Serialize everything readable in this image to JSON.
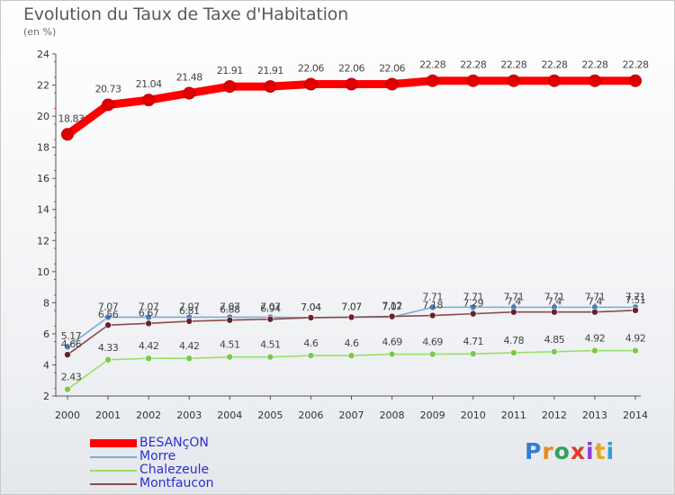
{
  "header": {
    "title": "Evolution du Taux de Taxe d'Habitation",
    "subtitle": "(en %)"
  },
  "logo": {
    "letters": [
      "P",
      "r",
      "o",
      "x",
      "i",
      "t",
      "i"
    ],
    "colors": [
      "#2f7fd4",
      "#e88a1a",
      "#2fa35a",
      "#e23a2a",
      "#8a3fd0",
      "#e8a61a",
      "#2f9fd4"
    ]
  },
  "chart_data": {
    "type": "line",
    "title": "Evolution du Taux de Taxe d'Habitation",
    "ylabel": "(en %)",
    "xlabel": "",
    "ylim": [
      2,
      24
    ],
    "yticks": [
      2,
      4,
      6,
      8,
      10,
      12,
      14,
      16,
      18,
      20,
      22,
      24
    ],
    "categories": [
      "2000",
      "2001",
      "2002",
      "2003",
      "2004",
      "2005",
      "2006",
      "2007",
      "2008",
      "2009",
      "2010",
      "2011",
      "2012",
      "2013",
      "2014"
    ],
    "series": [
      {
        "name": "BESANçON",
        "color": "#ff0000",
        "marker_color": "#e00000",
        "values": [
          18.83,
          20.73,
          21.04,
          21.48,
          21.91,
          21.91,
          22.06,
          22.06,
          22.06,
          22.28,
          22.28,
          22.28,
          22.28,
          22.28,
          22.28
        ],
        "labels": [
          "18.83",
          "20.73",
          "21.04",
          "21.48",
          "21.91",
          "21.91",
          "22.06",
          "22.06",
          "22.06",
          "22.28",
          "22.28",
          "22.28",
          "22.28",
          "22.28",
          "22.28"
        ]
      },
      {
        "name": "Morre",
        "color": "#7aaad8",
        "marker_color": "#4a7fbf",
        "values": [
          5.17,
          7.07,
          7.07,
          7.07,
          7.07,
          7.07,
          7.04,
          7.07,
          7.07,
          7.71,
          7.71,
          7.71,
          7.71,
          7.71,
          7.71
        ],
        "labels": [
          "5.17",
          "7.07",
          "7.07",
          "7.07",
          "7.07",
          "7.07",
          "7.04",
          "7.07",
          "7.07",
          "7.71",
          "7.71",
          "7.71",
          "7.71",
          "7.71",
          "7.71"
        ]
      },
      {
        "name": "Chalezeule",
        "color": "#99e066",
        "marker_color": "#79c84a",
        "values": [
          2.43,
          4.33,
          4.42,
          4.42,
          4.51,
          4.51,
          4.6,
          4.6,
          4.69,
          4.69,
          4.71,
          4.78,
          4.85,
          4.92,
          4.92
        ],
        "labels": [
          "2.43",
          "4.33",
          "4.42",
          "4.42",
          "4.51",
          "4.51",
          "4.6",
          "4.6",
          "4.69",
          "4.69",
          "4.71",
          "4.78",
          "4.85",
          "4.92",
          "4.92"
        ]
      },
      {
        "name": "Montfaucon",
        "color": "#8b4a4a",
        "marker_color": "#6b1f2a",
        "values": [
          4.66,
          6.56,
          6.67,
          6.81,
          6.88,
          6.94,
          7.04,
          7.07,
          7.12,
          7.18,
          7.29,
          7.4,
          7.4,
          7.4,
          7.51
        ],
        "labels": [
          "4.66",
          "6.56",
          "6.67",
          "6.81",
          "6.88",
          "6.94",
          "7.04",
          "7.07",
          "7.12",
          "7.18",
          "7.29",
          "7.4",
          "7.4",
          "7.4",
          "7.51"
        ]
      }
    ]
  }
}
